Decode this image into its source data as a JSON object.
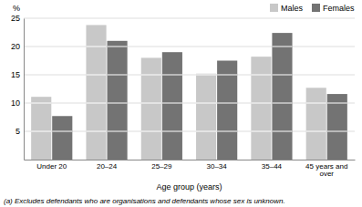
{
  "chart_data": {
    "type": "bar",
    "categories": [
      "Under 20",
      "20–24",
      "25–29",
      "30–34",
      "35–44",
      "45 years and over"
    ],
    "series": [
      {
        "name": "Males",
        "color": "#c8c8c8",
        "values": [
          11.1,
          23.8,
          18.0,
          15.2,
          18.2,
          12.7
        ]
      },
      {
        "name": "Females",
        "color": "#737373",
        "values": [
          7.7,
          21.0,
          19.0,
          17.5,
          22.4,
          11.6
        ]
      }
    ],
    "xlabel": "Age group (years)",
    "ylabel": "%",
    "ylim": [
      0,
      25
    ],
    "yticks": [
      5,
      10,
      15,
      20,
      25
    ],
    "grid": true,
    "legend": "top-right",
    "footnote": "(a) Excludes defendants who are organisations and defendants whose sex is unknown."
  }
}
